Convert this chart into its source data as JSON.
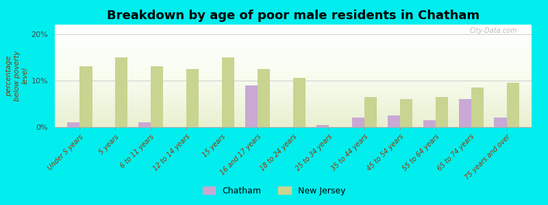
{
  "title": "Breakdown by age of poor male residents in Chatham",
  "categories": [
    "Under 5 years",
    "5 years",
    "6 to 11 years",
    "12 to 14 years",
    "15 years",
    "16 and 17 years",
    "18 to 24 years",
    "25 to 34 years",
    "35 to 44 years",
    "45 to 54 years",
    "55 to 64 years",
    "65 to 74 years",
    "75 years and over"
  ],
  "chatham_values": [
    1.0,
    0.0,
    1.0,
    0.0,
    0.0,
    9.0,
    0.0,
    0.5,
    2.0,
    2.5,
    1.5,
    6.0,
    2.0
  ],
  "nj_values": [
    13.0,
    15.0,
    13.0,
    12.5,
    15.0,
    12.5,
    10.5,
    0.0,
    6.5,
    6.0,
    6.5,
    8.5,
    9.5
  ],
  "chatham_color": "#c9a8d4",
  "nj_color": "#c8d490",
  "background_color": "#00eeee",
  "ylabel": "percentage\nbelow poverty\nlevel",
  "ylim": [
    0,
    22
  ],
  "yticks": [
    0,
    10,
    20
  ],
  "ytick_labels": [
    "0%",
    "10%",
    "20%"
  ],
  "title_fontsize": 13,
  "legend_chatham": "Chatham",
  "legend_nj": "New Jersey",
  "bar_width": 0.35
}
